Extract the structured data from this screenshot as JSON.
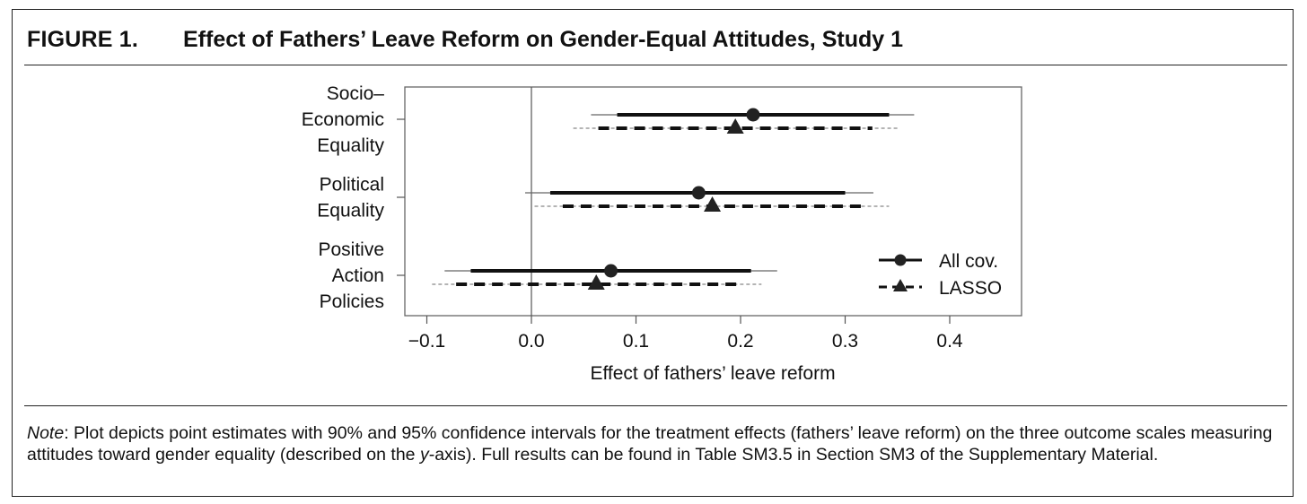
{
  "figure": {
    "label": "FIGURE 1.",
    "title": "Effect of Fathers’ Leave Reform on Gender-Equal Attitudes, Study 1"
  },
  "note": {
    "lead": "Note",
    "text_1": ": Plot depicts point estimates with 90% and 95% confidence intervals for the treatment effects (fathers’ leave reform) on the three outcome scales measuring attitudes toward gender equality (described on the ",
    "italic_y": "y",
    "text_2": "-axis). Full results can be found in Table SM3.5 in Section SM3 of the Supplementary Material."
  },
  "chart_data": {
    "type": "scatter",
    "xlabel": "Effect of fathers’ leave reform",
    "xlim": [
      -0.12,
      0.47
    ],
    "xticks": [
      -0.1,
      0.0,
      0.1,
      0.2,
      0.3,
      0.4
    ],
    "xtick_labels": [
      "−0.1",
      "0.0",
      "0.1",
      "0.2",
      "0.3",
      "0.4"
    ],
    "vline_at": 0.0,
    "grid": false,
    "legend_position": "bottom-right",
    "categories": [
      {
        "lines": [
          "Socio–",
          "Economic",
          "Equality"
        ]
      },
      {
        "lines": [
          "Political",
          "Equality"
        ]
      },
      {
        "lines": [
          "Positive",
          "Action",
          "Policies"
        ]
      }
    ],
    "series": [
      {
        "name": "All cov.",
        "marker": "circle",
        "line": "solid",
        "estimates": [
          0.212,
          0.16,
          0.076
        ],
        "ci90": [
          [
            0.082,
            0.342
          ],
          [
            0.018,
            0.3
          ],
          [
            -0.058,
            0.21
          ]
        ],
        "ci95": [
          [
            0.057,
            0.366
          ],
          [
            -0.006,
            0.327
          ],
          [
            -0.083,
            0.235
          ]
        ]
      },
      {
        "name": "LASSO",
        "marker": "triangle",
        "line": "dashed",
        "estimates": [
          0.195,
          0.173,
          0.062
        ],
        "ci90": [
          [
            0.064,
            0.326
          ],
          [
            0.03,
            0.316
          ],
          [
            -0.072,
            0.196
          ]
        ],
        "ci95": [
          [
            0.04,
            0.35
          ],
          [
            0.003,
            0.342
          ],
          [
            -0.095,
            0.22
          ]
        ]
      }
    ]
  }
}
